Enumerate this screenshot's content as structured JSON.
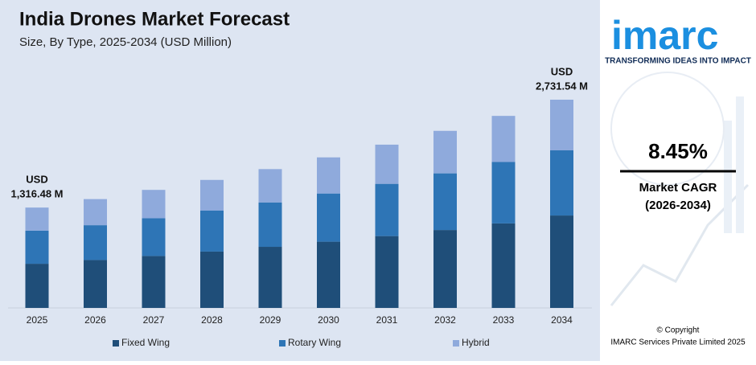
{
  "chart_data": {
    "type": "stacked-bar",
    "title": "India Drones Market Forecast",
    "subtitle": "Size, By Type, 2025-2034 (USD Million)",
    "categories": [
      "2025",
      "2026",
      "2027",
      "2028",
      "2029",
      "2030",
      "2031",
      "2032",
      "2033",
      "2034"
    ],
    "series": [
      {
        "name": "Fixed Wing",
        "color": "#1f4e79",
        "values": [
          579.25,
          628.2,
          681.3,
          738.8,
          801.3,
          869.0,
          942.4,
          1022.0,
          1108.4,
          1212.2
        ]
      },
      {
        "name": "Rotary Wing",
        "color": "#2e75b6",
        "values": [
          434.44,
          456.9,
          495.5,
          537.3,
          582.8,
          632.0,
          685.4,
          743.3,
          806.1,
          855.0
        ]
      },
      {
        "name": "Hybrid",
        "color": "#8faadc",
        "values": [
          302.79,
          342.6,
          371.5,
          403.1,
          437.0,
          473.9,
          514.0,
          557.5,
          604.6,
          664.34
        ]
      }
    ],
    "annotations": [
      {
        "category": "2025",
        "lines": [
          "USD",
          "1,316.48 M"
        ]
      },
      {
        "category": "2034",
        "lines": [
          "USD",
          "2,731.54 M"
        ]
      }
    ]
  },
  "panel": {
    "logo": "imarc",
    "tagline": "TRANSFORMING IDEAS INTO IMPACT",
    "cagr": "8.45%",
    "cagr_label": "Market CAGR",
    "cagr_period": "(2026-2034)",
    "copyright": "© Copyright",
    "owner": "IMARC Services Private Limited 2025"
  }
}
